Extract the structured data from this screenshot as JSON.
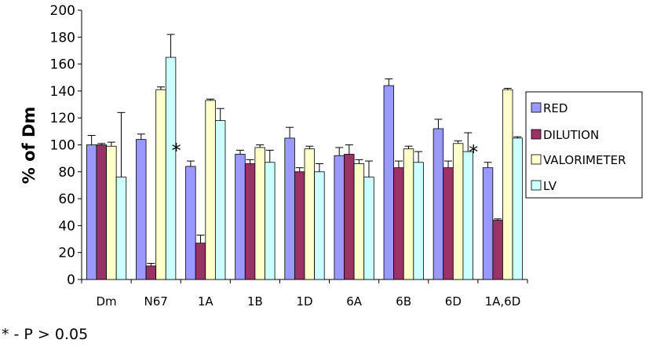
{
  "chart_data": {
    "type": "bar",
    "title": "",
    "xlabel": "",
    "ylabel": "% of Dm",
    "ylim": [
      0,
      200
    ],
    "yticks": [
      0,
      20,
      40,
      60,
      80,
      100,
      120,
      140,
      160,
      180,
      200
    ],
    "grid": false,
    "legend_position": "right",
    "categories": [
      "Dm",
      "N67",
      "1A",
      "1B",
      "1D",
      "6A",
      "6B",
      "6D",
      "1A,6D"
    ],
    "series": [
      {
        "name": "RED",
        "color": "#9999ff",
        "values": [
          100,
          104,
          84,
          93,
          105,
          92,
          144,
          112,
          83
        ],
        "errors": [
          7,
          4,
          4,
          3,
          8,
          6,
          5,
          7,
          4
        ]
      },
      {
        "name": "DILUTION",
        "color": "#993366",
        "values": [
          100,
          10,
          27,
          86,
          80,
          93,
          83,
          83,
          44
        ],
        "errors": [
          1,
          2,
          6,
          3,
          3,
          7,
          5,
          5,
          1
        ]
      },
      {
        "name": "VALORIMETER",
        "color": "#ffffcc",
        "values": [
          99,
          141,
          133,
          98,
          97,
          86,
          97,
          101,
          141
        ],
        "errors": [
          3,
          2,
          1,
          2,
          2,
          3,
          2,
          2,
          1
        ]
      },
      {
        "name": "LV",
        "color": "#ccffff",
        "values": [
          76,
          165,
          118,
          87,
          80,
          76,
          87,
          95,
          105
        ],
        "errors": [
          48,
          17,
          9,
          9,
          6,
          12,
          8,
          14,
          1
        ]
      }
    ],
    "annotations": [
      {
        "text": "*",
        "category": "1A"
      },
      {
        "text": "*",
        "category": "1A,6D"
      }
    ]
  },
  "footnote": "* - P > 0.05"
}
